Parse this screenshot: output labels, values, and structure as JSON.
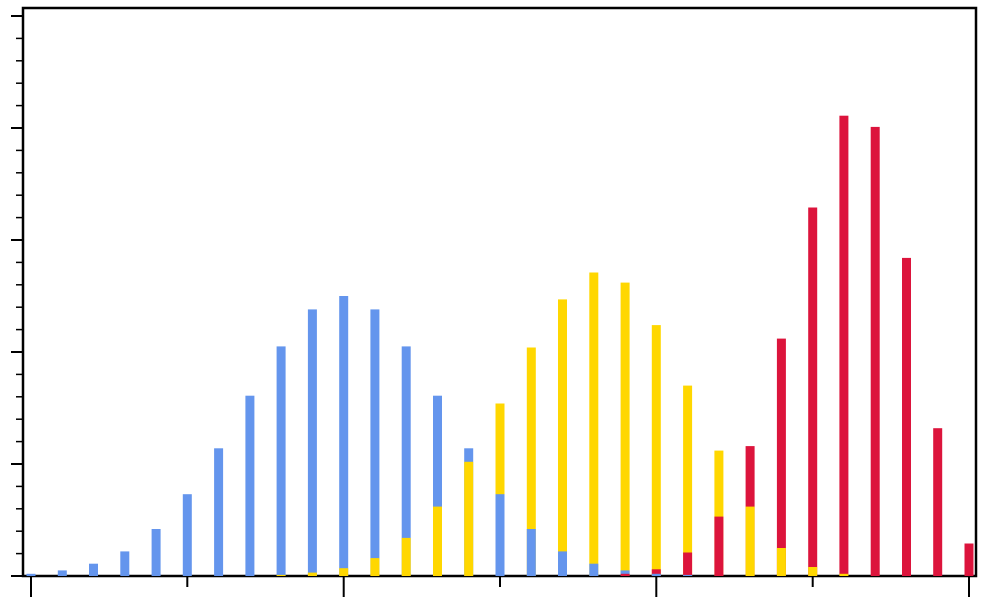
{
  "chart_data": {
    "type": "bar",
    "title": "",
    "xlabel": "",
    "ylabel": "",
    "grid": false,
    "legend": "none",
    "xlim": [
      0,
      30
    ],
    "ylim": [
      0,
      50
    ],
    "x": [
      0,
      1,
      2,
      3,
      4,
      5,
      6,
      7,
      8,
      9,
      10,
      11,
      12,
      13,
      14,
      15,
      16,
      17,
      18,
      19,
      20,
      21,
      22,
      23,
      24,
      25,
      26,
      27,
      28,
      29,
      30
    ],
    "series": [
      {
        "color": "#6495ED",
        "values": [
          0.2,
          0.5,
          1.1,
          2.2,
          4.2,
          7.3,
          11.4,
          16.1,
          20.5,
          23.8,
          25.0,
          23.8,
          20.5,
          16.1,
          11.4,
          7.3,
          4.2,
          2.2,
          1.1,
          0.5,
          0.2,
          0.1,
          0.0,
          0.0,
          0.0,
          0.0,
          0.0,
          0.0,
          0.0,
          0.0,
          0.0
        ]
      },
      {
        "color": "#FFD700",
        "values": [
          0.0,
          0.0,
          0.0,
          0.0,
          0.0,
          0.0,
          0.0,
          0.0,
          0.1,
          0.3,
          0.7,
          1.6,
          3.4,
          6.2,
          10.2,
          15.4,
          20.4,
          24.7,
          27.1,
          26.2,
          22.4,
          17.0,
          11.2,
          6.2,
          2.5,
          0.8,
          0.2,
          0.0,
          0.0,
          0.0,
          0.0
        ]
      },
      {
        "color": "#DC143C",
        "values": [
          0.0,
          0.0,
          0.0,
          0.0,
          0.0,
          0.0,
          0.0,
          0.0,
          0.0,
          0.0,
          0.0,
          0.0,
          0.0,
          0.0,
          0.0,
          0.0,
          0.0,
          0.0,
          0.0,
          0.2,
          0.6,
          2.1,
          5.3,
          11.6,
          21.2,
          32.9,
          41.1,
          40.1,
          28.4,
          13.2,
          2.9
        ]
      }
    ]
  }
}
